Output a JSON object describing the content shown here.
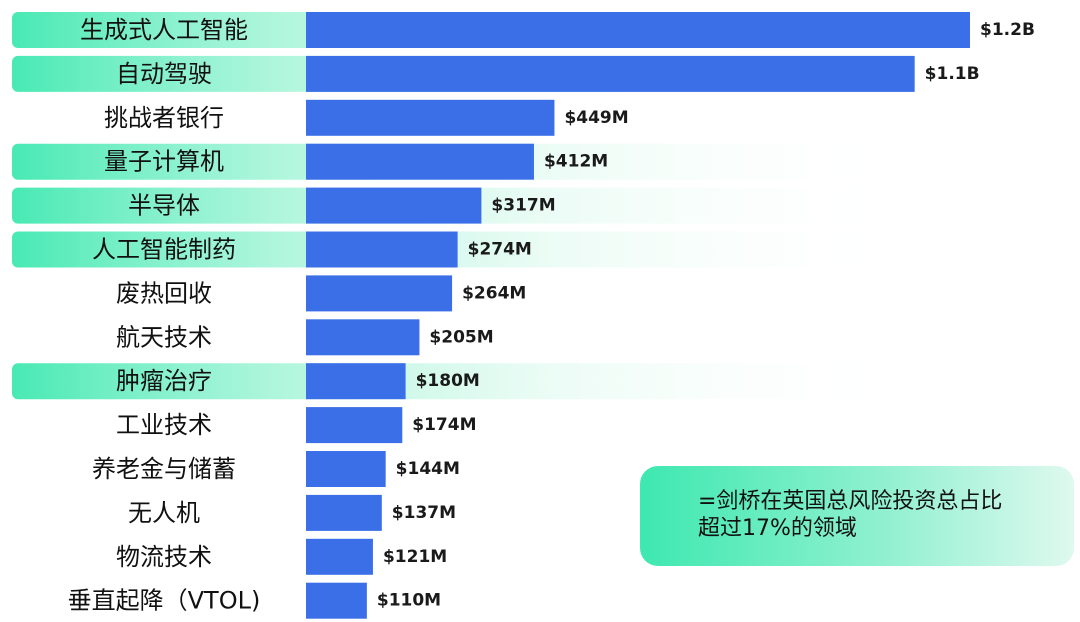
{
  "colors": {
    "bar": "#3b6fe8",
    "highlight": "#3ee8b0",
    "label_text": "#111111",
    "value_text": "#1a1a1a"
  },
  "note": {
    "line1": "=剑桥在英国总风险投资总占比",
    "line2": "超过17%的领域"
  },
  "chart_data": {
    "type": "bar",
    "orientation": "horizontal",
    "title": "",
    "xlabel": "",
    "ylabel": "",
    "unit": "USD",
    "categories": [
      "生成式人工智能",
      "自动驾驶",
      "挑战者银行",
      "量子计算机",
      "半导体",
      "人工智能制药",
      "废热回收",
      "航天技术",
      "肿瘤治疗",
      "工业技术",
      "养老金与储蓄",
      "无人机",
      "物流技术",
      "垂直起降（VTOL)"
    ],
    "values": [
      1200000000,
      1100000000,
      449000000,
      412000000,
      317000000,
      274000000,
      264000000,
      205000000,
      180000000,
      174000000,
      144000000,
      137000000,
      121000000,
      110000000
    ],
    "value_labels": [
      "$1.2B",
      "$1.1B",
      "$449M",
      "$412M",
      "$317M",
      "$274M",
      "$264M",
      "$205M",
      "$180M",
      "$174M",
      "$144M",
      "$137M",
      "$121M",
      "$110M"
    ],
    "highlighted": [
      true,
      true,
      false,
      true,
      true,
      true,
      false,
      false,
      true,
      false,
      false,
      false,
      false,
      false
    ],
    "xlim": [
      0,
      1200000000
    ],
    "grid": false,
    "legend": "none"
  }
}
